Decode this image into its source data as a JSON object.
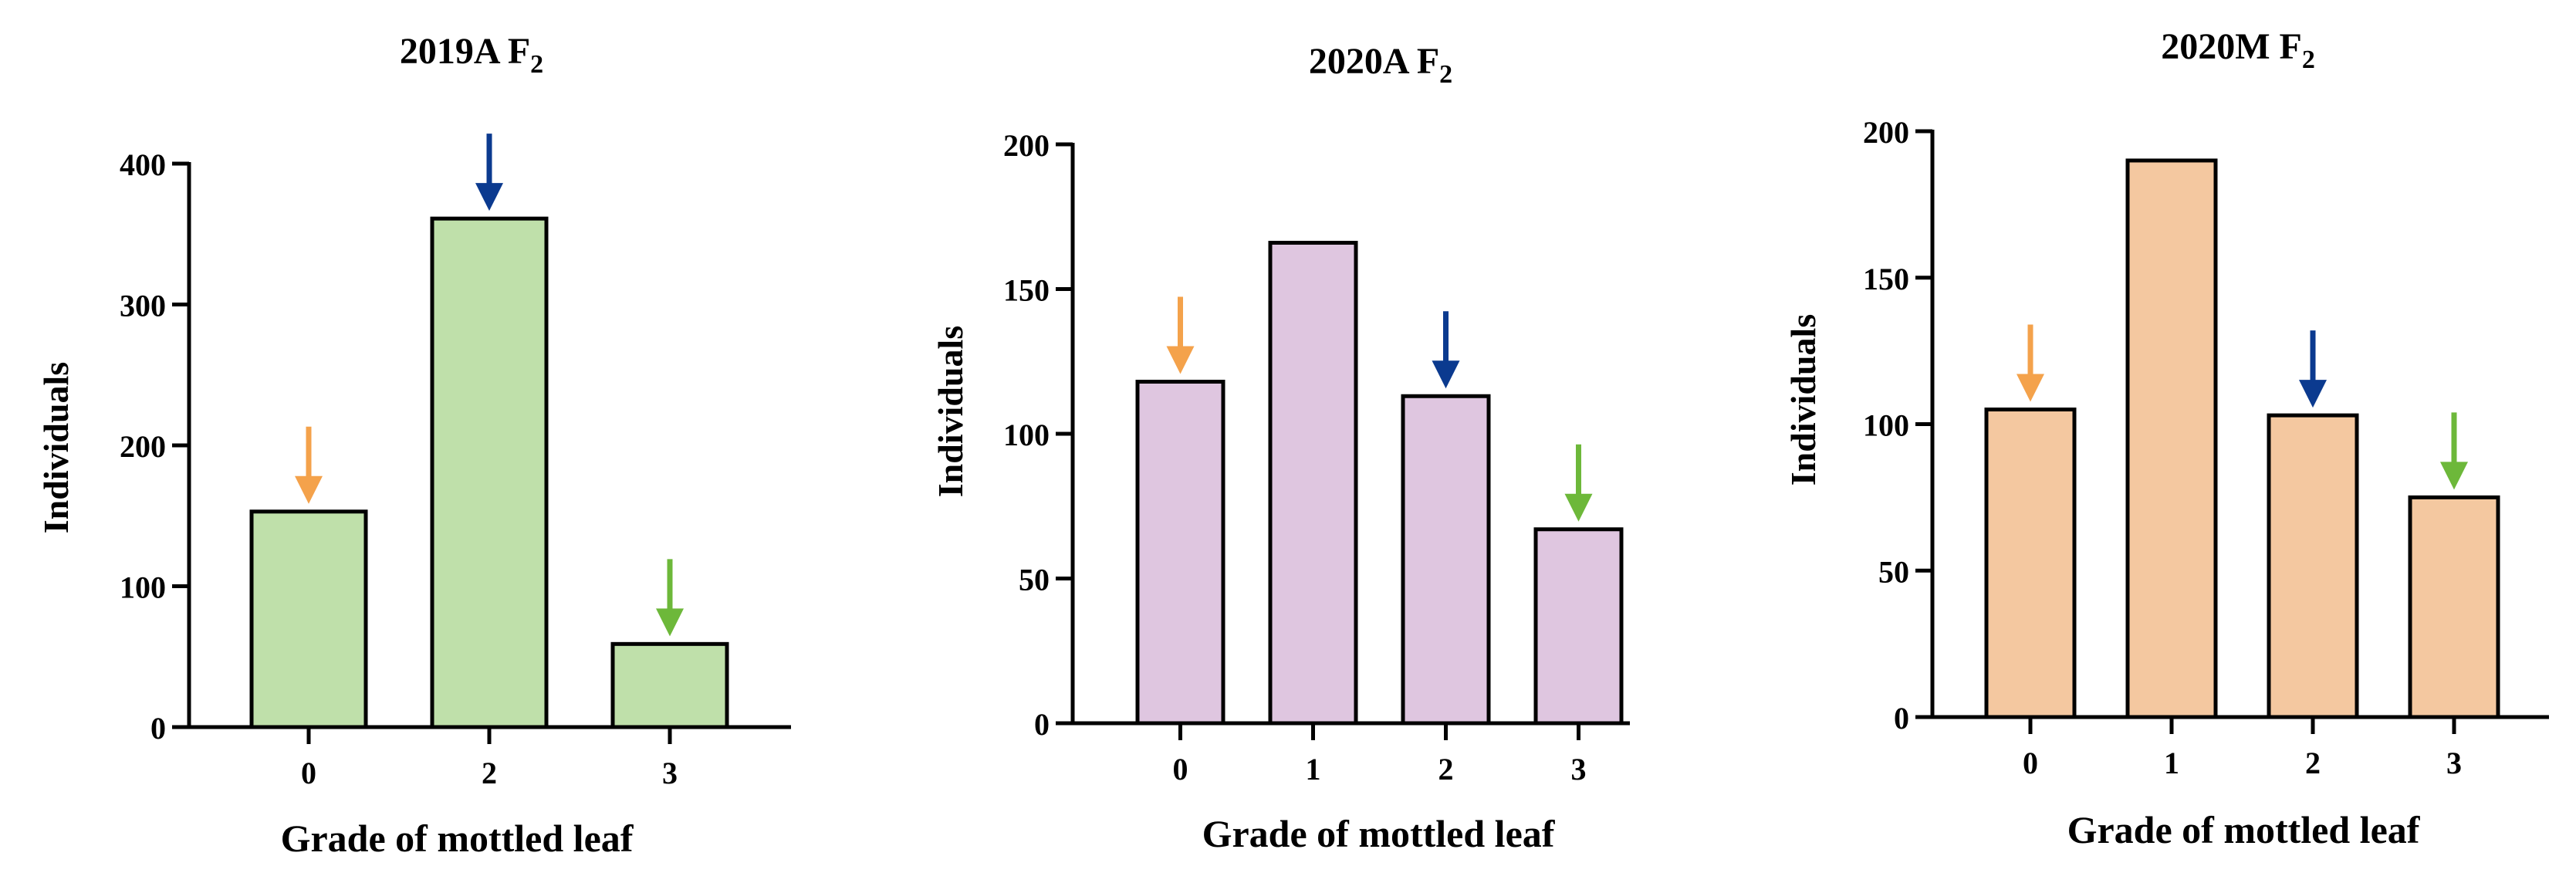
{
  "colors": {
    "orange_arrow": "#F4A24B",
    "blue_arrow": "#0B3A8F",
    "green_arrow": "#6DB83A"
  },
  "chart_data": [
    {
      "type": "bar",
      "title": "2019A F",
      "title_subscript": "2",
      "xlabel": "Grade of mottled leaf",
      "ylabel": "Individuals",
      "categories": [
        "0",
        "2",
        "3"
      ],
      "values": [
        153,
        361,
        59
      ],
      "ylim": [
        0,
        400
      ],
      "yticks": [
        "0",
        "100",
        "200",
        "300",
        "400"
      ],
      "bar_color": "#BFE0AA",
      "arrows": [
        {
          "category": "0",
          "color": "orange"
        },
        {
          "category": "2",
          "color": "blue"
        },
        {
          "category": "3",
          "color": "green"
        }
      ]
    },
    {
      "type": "bar",
      "title": "2020A F",
      "title_subscript": "2",
      "xlabel": "Grade of mottled leaf",
      "ylabel": "Individuals",
      "categories": [
        "0",
        "1",
        "2",
        "3"
      ],
      "values": [
        118,
        166,
        113,
        67
      ],
      "ylim": [
        0,
        200
      ],
      "yticks": [
        "0",
        "50",
        "100",
        "150",
        "200"
      ],
      "bar_color": "#DFC6E0",
      "arrows": [
        {
          "category": "0",
          "color": "orange"
        },
        {
          "category": "2",
          "color": "blue"
        },
        {
          "category": "3",
          "color": "green"
        }
      ]
    },
    {
      "type": "bar",
      "title": "2020M F",
      "title_subscript": "2",
      "xlabel": "Grade of mottled leaf",
      "ylabel": "Individuals",
      "categories": [
        "0",
        "1",
        "2",
        "3"
      ],
      "values": [
        105,
        190,
        103,
        75
      ],
      "ylim": [
        0,
        200
      ],
      "yticks": [
        "0",
        "50",
        "100",
        "150",
        "200"
      ],
      "bar_color": "#F4C8A0",
      "arrows": [
        {
          "category": "0",
          "color": "orange"
        },
        {
          "category": "2",
          "color": "blue"
        },
        {
          "category": "3",
          "color": "green"
        }
      ]
    }
  ]
}
